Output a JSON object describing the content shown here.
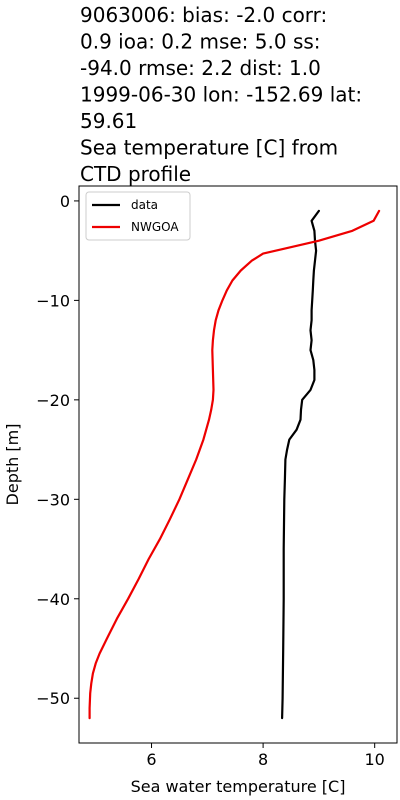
{
  "chart_data": {
    "type": "line",
    "title": "9063006: bias: -2.0  corr:\n0.9  ioa: 0.2  mse: 5.0  ss:\n-94.0  rmse: 2.2  dist: 1.0\n1999-06-30 lon: -152.69 lat:\n59.61\nSea temperature [C] from\nCTD profile",
    "title_lines": [
      "9063006: bias: -2.0  corr:",
      "0.9  ioa: 0.2  mse: 5.0  ss:",
      "-94.0  rmse: 2.2  dist: 1.0",
      "1999-06-30 lon: -152.69 lat:",
      "59.61",
      "Sea temperature [C] from",
      "CTD profile"
    ],
    "xlabel": "Sea water temperature [C]",
    "ylabel": "Depth [m]",
    "xlim": [
      4.7,
      10.4
    ],
    "ylim": [
      -54.5,
      1.5
    ],
    "xticks": [
      6,
      8,
      10
    ],
    "xtick_labels": [
      "6",
      "8",
      "10"
    ],
    "yticks": [
      0,
      -10,
      -20,
      -30,
      -40,
      -50
    ],
    "ytick_labels": [
      "0",
      "−10",
      "−20",
      "−30",
      "−40",
      "−50"
    ],
    "grid": false,
    "legend_position": "upper-left",
    "series": [
      {
        "name": "data",
        "color": "#000000",
        "points": [
          [
            9.0,
            -1
          ],
          [
            8.87,
            -2
          ],
          [
            8.92,
            -3
          ],
          [
            8.93,
            -4
          ],
          [
            8.95,
            -5
          ],
          [
            8.93,
            -6
          ],
          [
            8.91,
            -7
          ],
          [
            8.9,
            -8
          ],
          [
            8.89,
            -9
          ],
          [
            8.88,
            -10
          ],
          [
            8.87,
            -11
          ],
          [
            8.87,
            -12
          ],
          [
            8.85,
            -13
          ],
          [
            8.87,
            -14
          ],
          [
            8.85,
            -15
          ],
          [
            8.9,
            -16
          ],
          [
            8.92,
            -17
          ],
          [
            8.92,
            -18
          ],
          [
            8.85,
            -19
          ],
          [
            8.7,
            -20
          ],
          [
            8.68,
            -21
          ],
          [
            8.67,
            -22
          ],
          [
            8.6,
            -23
          ],
          [
            8.47,
            -24
          ],
          [
            8.43,
            -25
          ],
          [
            8.4,
            -26
          ],
          [
            8.39,
            -28
          ],
          [
            8.38,
            -30
          ],
          [
            8.37,
            -35
          ],
          [
            8.37,
            -40
          ],
          [
            8.36,
            -45
          ],
          [
            8.35,
            -50
          ],
          [
            8.34,
            -52
          ]
        ]
      },
      {
        "name": "NWGOA",
        "color": "#ee0000",
        "points": [
          [
            10.08,
            -1
          ],
          [
            9.98,
            -2
          ],
          [
            9.6,
            -3
          ],
          [
            9.0,
            -4
          ],
          [
            8.38,
            -4.8
          ],
          [
            8.0,
            -5.3
          ],
          [
            7.8,
            -6
          ],
          [
            7.6,
            -7
          ],
          [
            7.45,
            -8
          ],
          [
            7.35,
            -9
          ],
          [
            7.27,
            -10
          ],
          [
            7.2,
            -11
          ],
          [
            7.15,
            -12
          ],
          [
            7.12,
            -13
          ],
          [
            7.1,
            -14
          ],
          [
            7.09,
            -15
          ],
          [
            7.1,
            -17
          ],
          [
            7.11,
            -19
          ],
          [
            7.1,
            -20
          ],
          [
            7.07,
            -21
          ],
          [
            7.03,
            -22
          ],
          [
            6.93,
            -24
          ],
          [
            6.8,
            -26
          ],
          [
            6.65,
            -28
          ],
          [
            6.5,
            -30
          ],
          [
            6.33,
            -32
          ],
          [
            6.15,
            -34
          ],
          [
            5.95,
            -36
          ],
          [
            5.77,
            -38
          ],
          [
            5.58,
            -40
          ],
          [
            5.38,
            -42
          ],
          [
            5.2,
            -44
          ],
          [
            5.07,
            -45.5
          ],
          [
            5.0,
            -46.5
          ],
          [
            4.95,
            -47.5
          ],
          [
            4.92,
            -48.5
          ],
          [
            4.9,
            -49.5
          ],
          [
            4.89,
            -51
          ],
          [
            4.89,
            -52
          ]
        ]
      }
    ]
  }
}
